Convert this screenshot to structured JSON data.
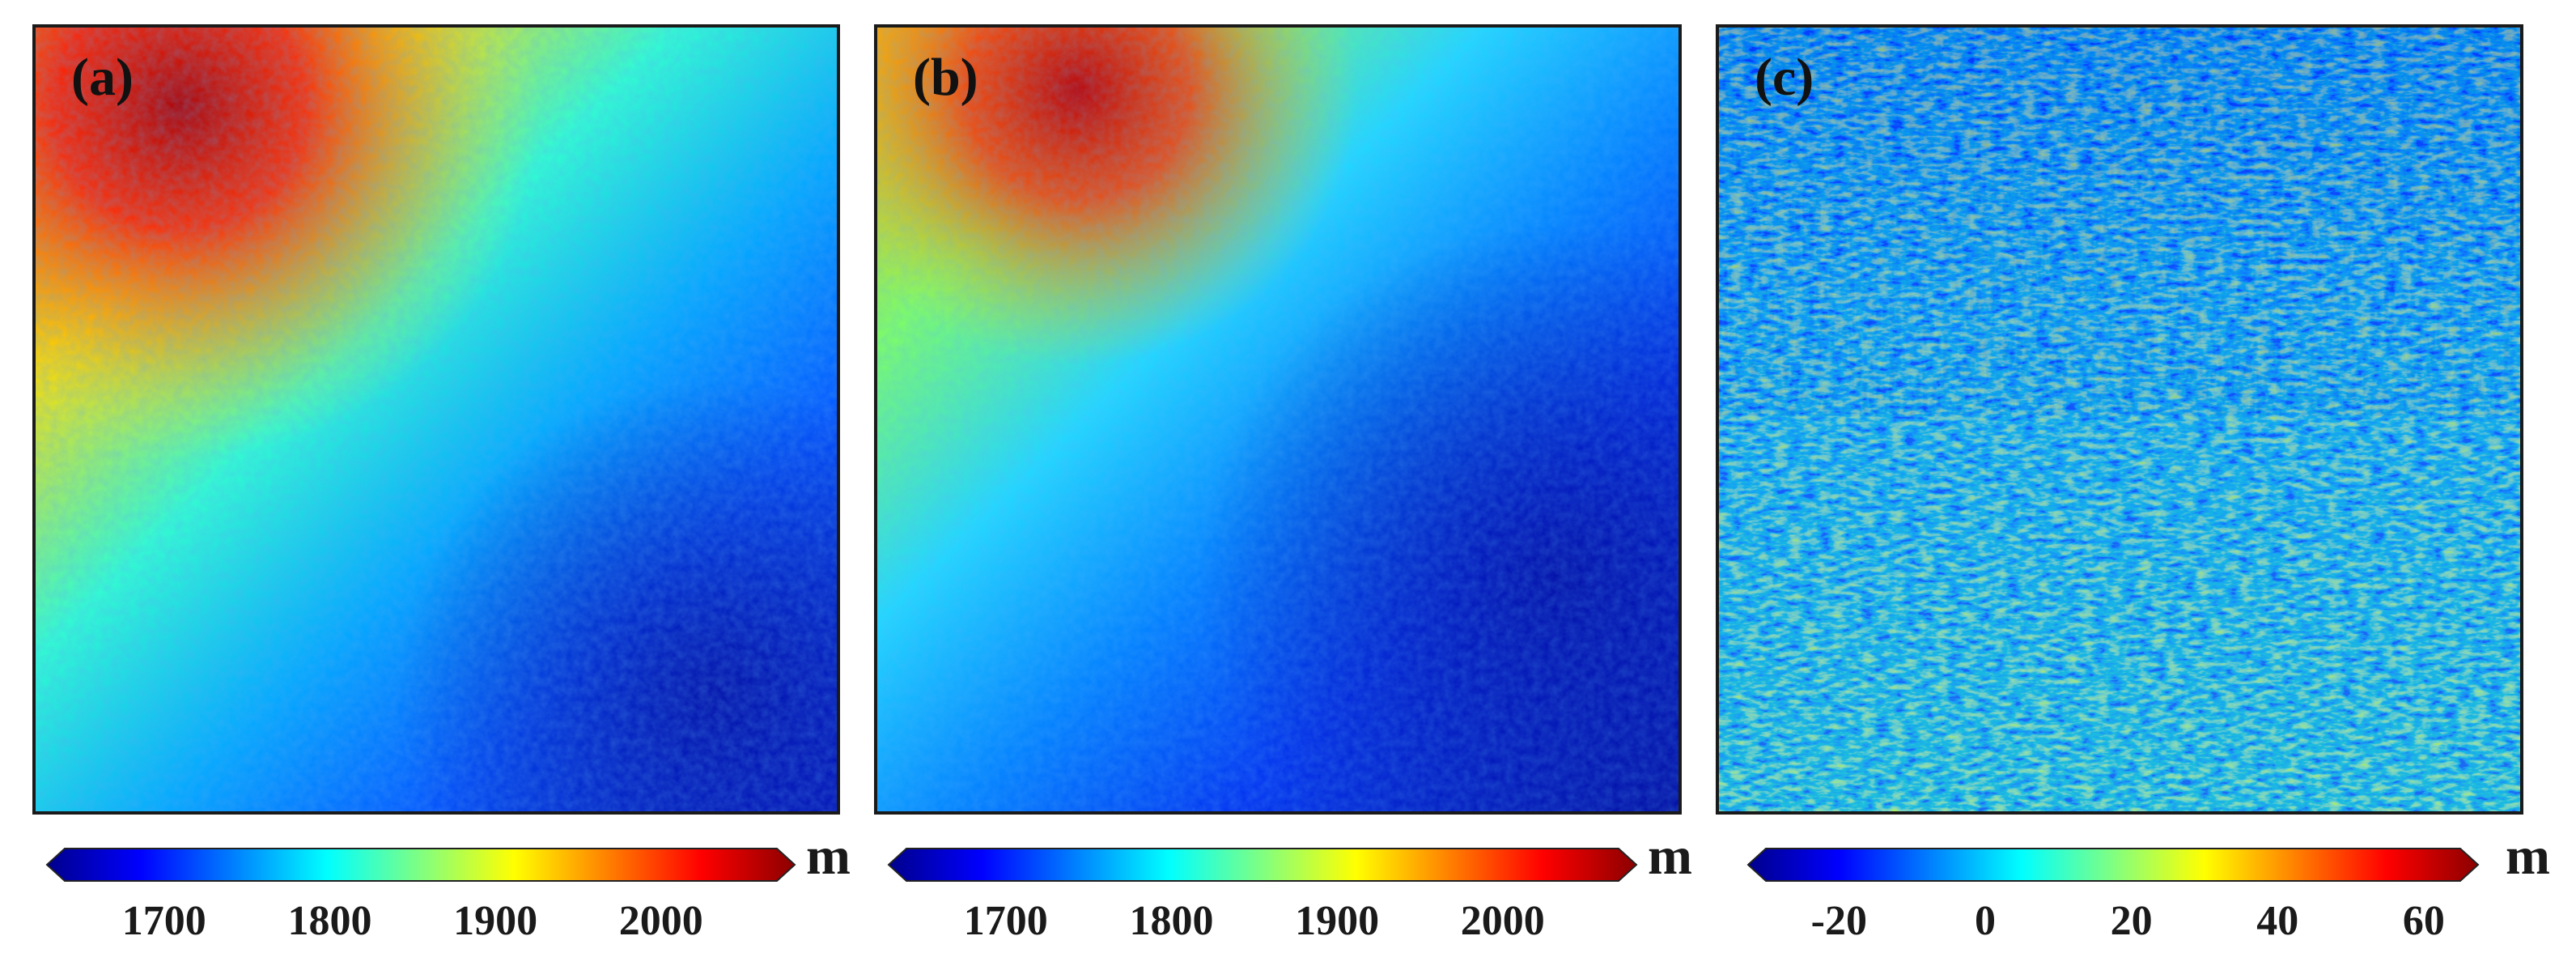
{
  "chart_data": [
    {
      "type": "heatmap",
      "panel_label": "(a)",
      "colormap": "jet",
      "value_range": [
        1640,
        2070
      ],
      "colorbar": {
        "unit": "m",
        "ticks": [
          1700,
          1800,
          1900,
          2000
        ],
        "extend": "both"
      },
      "description_values": {
        "high_region": "top-left",
        "low_region": "bottom-right"
      }
    },
    {
      "type": "heatmap",
      "panel_label": "(b)",
      "colormap": "jet",
      "value_range": [
        1640,
        2070
      ],
      "colorbar": {
        "unit": "m",
        "ticks": [
          1700,
          1800,
          1900,
          2000
        ],
        "extend": "both"
      },
      "description_values": {
        "high_region": "top-left",
        "low_region": "bottom-right"
      }
    },
    {
      "type": "heatmap",
      "panel_label": "(c)",
      "colormap": "jet",
      "value_range": [
        -30,
        65
      ],
      "colorbar": {
        "unit": "m",
        "ticks": [
          -20,
          0,
          20,
          40,
          60
        ],
        "extend": "both"
      }
    }
  ],
  "colors": {
    "jet": [
      "#00008b",
      "#0000ff",
      "#0080ff",
      "#00ffff",
      "#80ff80",
      "#ffff00",
      "#ff8000",
      "#ff0000",
      "#8b0000"
    ]
  }
}
